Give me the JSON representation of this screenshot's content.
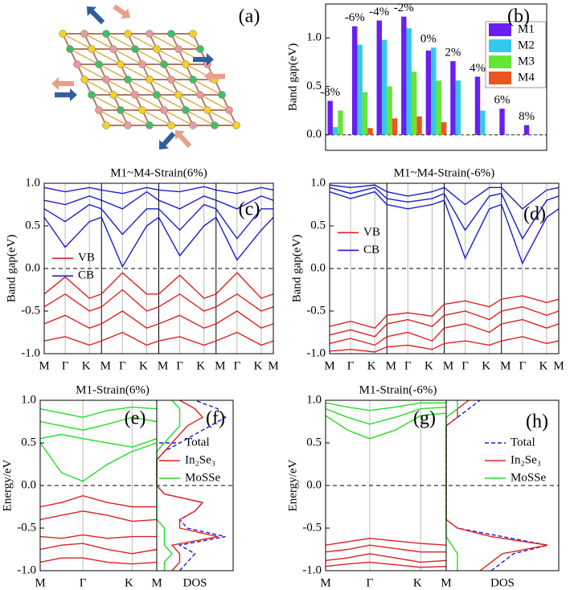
{
  "chart_data": [
    {
      "type": "structure",
      "panel_labels": [
        "(a)"
      ]
    },
    {
      "type": "bar",
      "panel_labels": [
        "(b)"
      ],
      "ylabel": "Band gap(eV)",
      "categories": [
        "-8%",
        "-6%",
        "-4%",
        "-2%",
        "0%",
        "2%",
        "4%",
        "6%",
        "8%"
      ],
      "series": [
        {
          "name": "M1",
          "color": "#6a1ef2",
          "values": [
            0.35,
            1.12,
            1.18,
            1.22,
            0.87,
            0.76,
            0.6,
            0.27,
            0.1
          ]
        },
        {
          "name": "M2",
          "color": "#35c8ee",
          "values": [
            0.08,
            0.93,
            0.98,
            1.1,
            0.9,
            0.56,
            0.25,
            0.0,
            0.0
          ]
        },
        {
          "name": "M3",
          "color": "#66e535",
          "values": [
            0.25,
            0.44,
            0.5,
            0.65,
            0.56,
            0.0,
            0.0,
            0.0,
            0.0
          ]
        },
        {
          "name": "M4",
          "color": "#ee5522",
          "values": [
            0.0,
            0.07,
            0.17,
            0.19,
            0.13,
            0.0,
            0.0,
            0.0,
            0.0
          ]
        }
      ],
      "ylim": [
        -0.16,
        1.35
      ],
      "yticks": [
        {
          "value": 0,
          "label": "0.0"
        },
        0.5,
        {
          "value": 1,
          "label": "1.0"
        }
      ],
      "legend": "upper-right"
    },
    {
      "type": "band",
      "panel_labels": [
        "(c)"
      ],
      "title": "M1~M4-Strain(6%)",
      "ylabel": "Band gap(eV)",
      "kpoints": [
        "M",
        "Γ",
        "K",
        "M",
        "Γ",
        "K",
        "M",
        "Γ",
        "K",
        "M",
        "Γ",
        "K",
        "M"
      ],
      "ylim": [
        -1,
        1
      ],
      "yticks": [
        {
          "value": -1,
          "label": "-1.0"
        },
        -0.5,
        {
          "value": 0,
          "label": "0.0"
        },
        0.5,
        {
          "value": 1,
          "label": "1.0"
        }
      ],
      "legend": "middle-left",
      "series": [
        {
          "name": "VB",
          "color": "#e02020",
          "bands": [
            [
              -0.3,
              -0.1,
              -0.35,
              -0.3,
              -0.05,
              -0.3,
              -0.3,
              -0.08,
              -0.35,
              -0.3,
              -0.05,
              -0.35,
              -0.3
            ],
            [
              -0.45,
              -0.3,
              -0.5,
              -0.45,
              -0.25,
              -0.5,
              -0.45,
              -0.3,
              -0.5,
              -0.45,
              -0.3,
              -0.5,
              -0.45
            ],
            [
              -0.65,
              -0.55,
              -0.7,
              -0.65,
              -0.5,
              -0.7,
              -0.65,
              -0.55,
              -0.7,
              -0.65,
              -0.5,
              -0.7,
              -0.65
            ],
            [
              -0.85,
              -0.8,
              -0.9,
              -0.85,
              -0.75,
              -0.9,
              -0.85,
              -0.8,
              -0.9,
              -0.85,
              -0.75,
              -0.9,
              -0.85
            ]
          ]
        },
        {
          "name": "CB",
          "color": "#1c1cd0",
          "bands": [
            [
              0.6,
              0.25,
              0.55,
              0.6,
              0.02,
              0.5,
              0.6,
              0.15,
              0.5,
              0.6,
              0.1,
              0.45,
              0.6
            ],
            [
              0.7,
              0.55,
              0.75,
              0.7,
              0.4,
              0.7,
              0.7,
              0.45,
              0.75,
              0.7,
              0.35,
              0.7,
              0.7
            ],
            [
              0.8,
              0.75,
              0.85,
              0.8,
              0.7,
              0.9,
              0.8,
              0.7,
              0.85,
              0.8,
              0.7,
              0.85,
              0.8
            ],
            [
              0.95,
              0.9,
              0.95,
              0.92,
              0.88,
              0.95,
              0.92,
              0.9,
              0.96,
              0.92,
              0.88,
              0.95,
              0.92
            ]
          ]
        }
      ]
    },
    {
      "type": "band",
      "panel_labels": [
        "(d)"
      ],
      "title": "M1~M4-Strain(-6%)",
      "ylabel": "Band gap(eV)",
      "kpoints": [
        "M",
        "Γ",
        "K",
        "M",
        "Γ",
        "K",
        "M",
        "Γ",
        "K",
        "M",
        "Γ",
        "K",
        "M"
      ],
      "ylim": [
        -1,
        1
      ],
      "yticks": [
        {
          "value": -1,
          "label": "-1.0"
        },
        -0.5,
        {
          "value": 0,
          "label": "0.0"
        },
        0.5,
        {
          "value": 1,
          "label": "1.0"
        }
      ],
      "legend": "upper-left",
      "series": [
        {
          "name": "VB",
          "color": "#e02020",
          "bands": [
            [
              -0.68,
              -0.62,
              -0.7,
              -0.55,
              -0.52,
              -0.56,
              -0.42,
              -0.38,
              -0.45,
              -0.36,
              -0.32,
              -0.4,
              -0.36
            ],
            [
              -0.78,
              -0.72,
              -0.8,
              -0.65,
              -0.6,
              -0.68,
              -0.55,
              -0.5,
              -0.6,
              -0.5,
              -0.45,
              -0.55,
              -0.5
            ],
            [
              -0.88,
              -0.82,
              -0.9,
              -0.8,
              -0.75,
              -0.85,
              -0.7,
              -0.65,
              -0.75,
              -0.65,
              -0.6,
              -0.7,
              -0.65
            ],
            [
              -0.97,
              -0.95,
              -0.98,
              -0.92,
              -0.9,
              -0.95,
              -0.88,
              -0.85,
              -0.9,
              -0.85,
              -0.8,
              -0.88,
              -0.85
            ]
          ]
        },
        {
          "name": "CB",
          "color": "#1c1cd0",
          "bands": [
            [
              0.9,
              0.82,
              0.9,
              0.75,
              0.7,
              0.75,
              0.8,
              0.12,
              0.7,
              0.75,
              0.06,
              0.6,
              0.7
            ],
            [
              0.95,
              0.88,
              0.95,
              0.82,
              0.78,
              0.82,
              0.88,
              0.45,
              0.85,
              0.88,
              0.35,
              0.8,
              0.85
            ],
            [
              0.98,
              0.95,
              0.98,
              0.9,
              0.85,
              0.9,
              0.95,
              0.75,
              0.95,
              0.95,
              0.7,
              0.92,
              0.95
            ]
          ]
        }
      ]
    },
    {
      "type": "band",
      "panel_labels": [
        "(e)",
        "(f)"
      ],
      "title": "M1-Strain(6%)",
      "ylabel": "Energy/eV",
      "kpoints": [
        "M",
        null,
        "Γ",
        null,
        "K",
        "M"
      ],
      "ylim": [
        -1,
        1
      ],
      "yticks": [
        {
          "value": -1,
          "label": "-1.0"
        },
        -0.5,
        {
          "value": 0,
          "label": "0.0"
        },
        0.5,
        {
          "value": 1,
          "label": "1.0"
        }
      ],
      "legend": "upper-right",
      "series": [
        {
          "color": "#e02020",
          "bands": [
            [
              -0.25,
              -0.2,
              -0.12,
              -0.2,
              -0.25,
              -0.25
            ],
            [
              -0.4,
              -0.35,
              -0.3,
              -0.35,
              -0.42,
              -0.4
            ],
            [
              -0.6,
              -0.62,
              -0.58,
              -0.62,
              -0.6,
              -0.6
            ],
            [
              -0.75,
              -0.7,
              -0.68,
              -0.75,
              -0.8,
              -0.75
            ],
            [
              -0.9,
              -0.85,
              -0.85,
              -0.9,
              -0.92,
              -0.9
            ]
          ]
        },
        {
          "color": "#22dd22",
          "bands": [
            [
              0.5,
              0.15,
              0.05,
              0.25,
              0.4,
              0.5
            ],
            [
              0.55,
              0.6,
              0.55,
              0.5,
              0.45,
              0.55
            ],
            [
              0.75,
              0.7,
              0.65,
              0.72,
              0.8,
              0.75
            ],
            [
              0.9,
              0.85,
              0.8,
              0.88,
              0.92,
              0.9
            ]
          ]
        }
      ],
      "dos": {
        "xlabel": "DOS",
        "xlim": [
          0,
          10
        ],
        "energies": [
          -1,
          -0.9,
          -0.8,
          -0.7,
          -0.6,
          -0.5,
          -0.4,
          -0.3,
          -0.2,
          -0.1,
          0,
          0.1,
          0.2,
          0.3,
          0.4,
          0.5,
          0.6,
          0.7,
          0.8,
          0.9,
          1
        ],
        "series": [
          {
            "name": "Total",
            "color": "#1c1cd0",
            "linestyle": "dashed",
            "values": [
              3,
              4,
              5,
              3,
              9,
              4,
              3,
              5,
              6,
              1,
              0,
              0,
              0,
              0,
              1,
              3,
              5,
              7,
              9,
              8,
              5
            ]
          },
          {
            "name": "In₂Se₃",
            "color": "#e02020",
            "linestyle": "solid",
            "values": [
              2,
              3,
              3,
              2,
              8,
              3,
              3,
              5,
              6,
              1,
              0,
              0,
              0,
              0,
              1,
              2,
              3,
              4,
              6,
              5,
              3
            ]
          },
          {
            "name": "MoSSe",
            "color": "#22dd22",
            "linestyle": "solid",
            "values": [
              1,
              1,
              2,
              1,
              1,
              1,
              0,
              0,
              0,
              0,
              0,
              0,
              0,
              0,
              0,
              1,
              2,
              3,
              3,
              3,
              2
            ]
          }
        ]
      }
    },
    {
      "type": "band",
      "panel_labels": [
        "(g)",
        "(h)"
      ],
      "title": "M1-Strain(-6%)",
      "ylabel": "Energy/eV",
      "kpoints": [
        "M",
        null,
        "Γ",
        null,
        "K",
        "M"
      ],
      "ylim": [
        -1,
        1
      ],
      "yticks": [
        {
          "value": -1,
          "label": "-1.0"
        },
        -0.5,
        {
          "value": 0,
          "label": "0.0"
        },
        0.5,
        {
          "value": 1,
          "label": "1.0"
        }
      ],
      "legend": "upper-right",
      "series": [
        {
          "color": "#e02020",
          "bands": [
            [
              -0.7,
              -0.66,
              -0.62,
              -0.65,
              -0.68,
              -0.7
            ],
            [
              -0.78,
              -0.75,
              -0.7,
              -0.74,
              -0.78,
              -0.78
            ],
            [
              -0.88,
              -0.85,
              -0.8,
              -0.85,
              -0.9,
              -0.88
            ],
            [
              -0.95,
              -0.92,
              -0.9,
              -0.93,
              -0.96,
              -0.95
            ]
          ]
        },
        {
          "color": "#22dd22",
          "bands": [
            [
              0.82,
              0.65,
              0.55,
              0.65,
              0.82,
              0.85
            ],
            [
              0.9,
              0.8,
              0.72,
              0.8,
              0.9,
              0.92
            ],
            [
              0.97,
              0.92,
              0.88,
              0.92,
              0.97,
              0.97
            ]
          ]
        }
      ],
      "dos": {
        "xlabel": "DOS",
        "xlim": [
          0,
          10
        ],
        "energies": [
          -1,
          -0.9,
          -0.8,
          -0.7,
          -0.6,
          -0.5,
          -0.4,
          -0.3,
          -0.2,
          -0.1,
          0,
          0.1,
          0.2,
          0.3,
          0.4,
          0.5,
          0.6,
          0.7,
          0.8,
          0.9,
          1
        ],
        "series": [
          {
            "name": "Total",
            "color": "#1c1cd0",
            "linestyle": "dashed",
            "values": [
              4,
              5,
              6,
              9,
              5,
              1,
              0,
              0,
              0,
              0,
              0,
              0,
              0,
              0,
              0,
              0,
              0,
              0,
              1,
              2,
              3
            ]
          },
          {
            "name": "In₂Se₃",
            "color": "#e02020",
            "linestyle": "solid",
            "values": [
              3,
              4,
              5,
              9,
              4,
              1,
              0,
              0,
              0,
              0,
              0,
              0,
              0,
              0,
              0,
              0,
              0,
              0,
              1,
              1,
              2
            ]
          },
          {
            "name": "MoSSe",
            "color": "#22dd22",
            "linestyle": "solid",
            "values": [
              1,
              1,
              1,
              0.5,
              0,
              0,
              0,
              0,
              0,
              0,
              0,
              0,
              0,
              0,
              0,
              0,
              0,
              0,
              0,
              1,
              1
            ]
          }
        ]
      }
    }
  ]
}
